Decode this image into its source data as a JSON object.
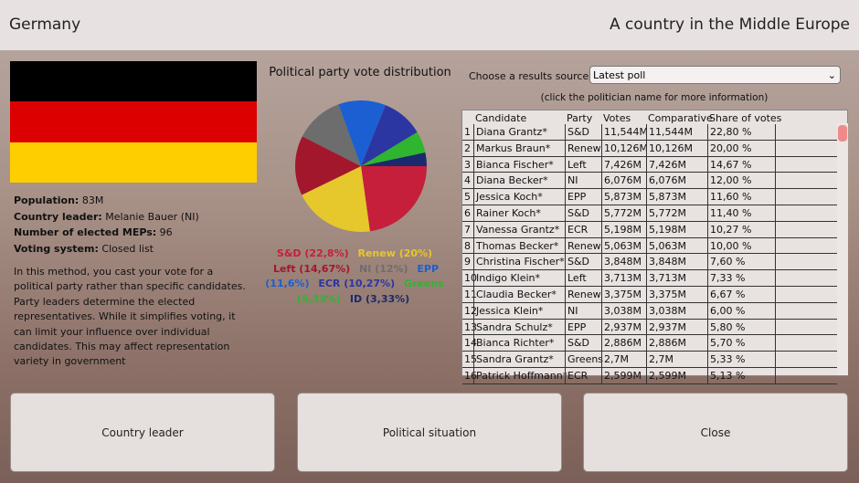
{
  "header": {
    "title": "Germany",
    "subtitle": "A country in the Middle Europe"
  },
  "info": [
    {
      "label": "Population:",
      "value": "83M"
    },
    {
      "label": "Country leader:",
      "value": "Melanie Bauer (NI)"
    },
    {
      "label": "Number of elected MEPs:",
      "value": "96"
    },
    {
      "label": "Voting system:",
      "value": "Closed list"
    }
  ],
  "description": "In this method, you cast your vote for a political party rather than specific candidates. Party leaders determine the elected representatives. While it simplifies voting, it can limit your influence over individual candidates. This may affect representation variety in government",
  "chart_data": {
    "type": "pie",
    "title": "Political party vote distribution",
    "categories": [
      "S&D",
      "Renew",
      "Left",
      "NI",
      "EPP",
      "ECR",
      "Greens",
      "ID"
    ],
    "values": [
      22.8,
      20,
      14.67,
      12,
      11.6,
      10.27,
      5.33,
      3.33
    ],
    "value_labels": [
      "(22,8%)",
      "(20%)",
      "(14,67%)",
      "(12%)",
      "(11,6%)",
      "(10,27%)",
      "(5,33%)",
      "(3,33%)"
    ],
    "colors": [
      "#c51f3b",
      "#e6c72c",
      "#a3172c",
      "#6d6d6d",
      "#1b5fd2",
      "#2b36a2",
      "#2fb52f",
      "#1b2a6c"
    ]
  },
  "source": {
    "label": "Choose a results source",
    "selected": "Latest poll",
    "hint": "(click the politician name for more information)"
  },
  "table": {
    "columns": [
      "Candidate",
      "Party",
      "Votes",
      "Comparative",
      "Share of votes"
    ],
    "rows": [
      [
        "1",
        "Diana Grantz*",
        "S&D",
        "11,544M",
        "11,544M",
        "22,80 %"
      ],
      [
        "2",
        "Markus Braun*",
        "Renew",
        "10,126M",
        "10,126M",
        "20,00 %"
      ],
      [
        "3",
        "Bianca Fischer*",
        "Left",
        "7,426M",
        "7,426M",
        "14,67 %"
      ],
      [
        "4",
        "Diana Becker*",
        "NI",
        "6,076M",
        "6,076M",
        "12,00 %"
      ],
      [
        "5",
        "Jessica Koch*",
        "EPP",
        "5,873M",
        "5,873M",
        "11,60 %"
      ],
      [
        "6",
        "Rainer Koch*",
        "S&D",
        "5,772M",
        "5,772M",
        "11,40 %"
      ],
      [
        "7",
        "Vanessa Grantz*",
        "ECR",
        "5,198M",
        "5,198M",
        "10,27 %"
      ],
      [
        "8",
        "Thomas Becker*",
        "Renew",
        "5,063M",
        "5,063M",
        "10,00 %"
      ],
      [
        "9",
        "Christina Fischer*",
        "S&D",
        "3,848M",
        "3,848M",
        "7,60 %"
      ],
      [
        "10",
        "Indigo Klein*",
        "Left",
        "3,713M",
        "3,713M",
        "7,33 %"
      ],
      [
        "11",
        "Claudia Becker*",
        "Renew",
        "3,375M",
        "3,375M",
        "6,67 %"
      ],
      [
        "12",
        "Jessica Klein*",
        "NI",
        "3,038M",
        "3,038M",
        "6,00 %"
      ],
      [
        "13",
        "Sandra Schulz*",
        "EPP",
        "2,937M",
        "2,937M",
        "5,80 %"
      ],
      [
        "14",
        "Bianca Richter*",
        "S&D",
        "2,886M",
        "2,886M",
        "5,70 %"
      ],
      [
        "15",
        "Sandra Grantz*",
        "Greens",
        "2,7M",
        "2,7M",
        "5,33 %"
      ],
      [
        "16",
        "Patrick Hoffmann*",
        "ECR",
        "2,599M",
        "2,599M",
        "5,13 %"
      ]
    ]
  },
  "buttons": [
    "Country leader",
    "Political situation",
    "Close"
  ]
}
